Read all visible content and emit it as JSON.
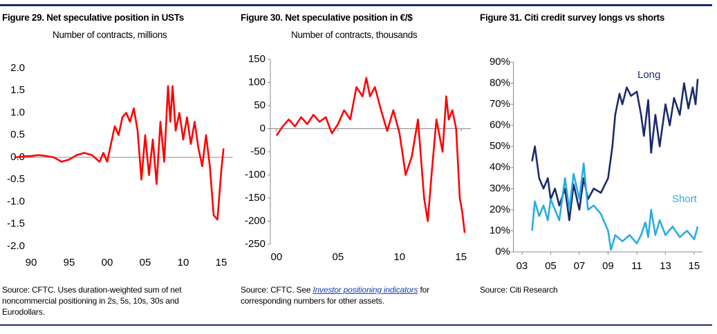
{
  "chart_data": [
    {
      "type": "line",
      "title": "Figure 29. Net speculative position in USTs",
      "subtitle": "Number of contracts, millions",
      "source": "Source: CFTC. Uses duration-weighted sum of net noncommercial positioning in 2s, 5s, 10s, 30s and Eurodollars.",
      "color": "#ff0000",
      "x": [
        1988,
        1989,
        1990,
        1991,
        1992,
        1993,
        1994,
        1995,
        1996,
        1997,
        1998,
        1999,
        1999.5,
        2000,
        2000.5,
        2001,
        2001.5,
        2002,
        2002.5,
        2003,
        2003.5,
        2004,
        2004.5,
        2005,
        2005.5,
        2006,
        2006.5,
        2007,
        2007.5,
        2008,
        2008.3,
        2008.6,
        2009,
        2009.5,
        2010,
        2010.5,
        2011,
        2011.5,
        2012,
        2012.5,
        2013,
        2013.5,
        2014,
        2014.5,
        2015,
        2015.3
      ],
      "values": [
        0,
        0.02,
        0.03,
        0.05,
        0.03,
        0,
        -0.1,
        -0.05,
        0.05,
        0.1,
        0.05,
        -0.1,
        0.1,
        -0.1,
        0.3,
        0.7,
        0.5,
        0.9,
        1.0,
        0.8,
        1.1,
        0.6,
        -0.5,
        0.5,
        -0.4,
        0.4,
        -0.6,
        0.8,
        -0.1,
        1.6,
        0.8,
        1.6,
        0.6,
        1.0,
        0.4,
        0.9,
        0.3,
        0.8,
        0.2,
        -0.2,
        0.5,
        -0.2,
        -1.3,
        -1.4,
        -0.3,
        0.2
      ],
      "xlim": [
        1988,
        2016.5
      ],
      "xticks": [
        {
          "value": 1990,
          "label": "90"
        },
        {
          "value": 1995,
          "label": "95"
        },
        {
          "value": 2000,
          "label": "00"
        },
        {
          "value": 2005,
          "label": "05"
        },
        {
          "value": 2010,
          "label": "10"
        },
        {
          "value": 2015,
          "label": "15"
        }
      ],
      "ylim": [
        -2,
        2
      ],
      "yticks": [
        {
          "value": 2,
          "label": "2.0"
        },
        1.5,
        {
          "value": 1,
          "label": "1.0"
        },
        0.5,
        {
          "value": 0,
          "label": "0.0"
        },
        -0.5,
        {
          "value": -1,
          "label": "-1.0"
        },
        -1.5,
        {
          "value": -2,
          "label": "-2.0"
        }
      ]
    },
    {
      "type": "line",
      "title": "Figure 30. Net speculative position in €/$",
      "subtitle": "Number of contracts, thousands",
      "source": {
        "before": "Source: CFTC. See ",
        "link": "Investor positioning indicators",
        "after": " for corresponding numbers for other assets."
      },
      "color": "#ff0000",
      "x": [
        2000,
        2000.5,
        2001,
        2001.5,
        2002,
        2002.5,
        2003,
        2003.5,
        2004,
        2004.5,
        2005,
        2005.5,
        2006,
        2006.5,
        2007,
        2007.3,
        2007.6,
        2008,
        2008.5,
        2009,
        2009.5,
        2010,
        2010.5,
        2011,
        2011.5,
        2012,
        2012.3,
        2012.6,
        2013,
        2013.5,
        2013.8,
        2014,
        2014.3,
        2014.6,
        2014.9,
        2015.1,
        2015.3
      ],
      "values": [
        -15,
        5,
        20,
        5,
        25,
        10,
        30,
        15,
        25,
        -10,
        10,
        40,
        20,
        90,
        70,
        110,
        70,
        90,
        40,
        -5,
        40,
        -10,
        -100,
        -60,
        20,
        -150,
        -200,
        -100,
        20,
        -50,
        70,
        20,
        40,
        0,
        -150,
        -180,
        -225
      ],
      "xlim": [
        1999.5,
        2015.8
      ],
      "xticks": [
        {
          "value": 2000,
          "label": "00"
        },
        {
          "value": 2005,
          "label": "05"
        },
        {
          "value": 2010,
          "label": "10"
        },
        {
          "value": 2015,
          "label": "15"
        }
      ],
      "ylim": [
        -250,
        150
      ],
      "yticks": [
        150,
        100,
        50,
        0,
        -50,
        -100,
        -150,
        -200,
        -250
      ]
    },
    {
      "type": "line",
      "title": "Figure 31. Citi credit survey longs vs shorts",
      "source": "Source: Citi Research",
      "series": [
        {
          "name": "Long",
          "color": "#1a2a6c",
          "x": [
            2003.7,
            2003.9,
            2004.2,
            2004.5,
            2004.8,
            2005,
            2005.3,
            2005.6,
            2006,
            2006.3,
            2006.6,
            2007,
            2007.3,
            2007.6,
            2008,
            2008.5,
            2009,
            2009.3,
            2009.5,
            2009.8,
            2010,
            2010.3,
            2010.6,
            2011,
            2011.3,
            2011.5,
            2011.8,
            2012,
            2012.3,
            2012.6,
            2013,
            2013.3,
            2013.6,
            2014,
            2014.3,
            2014.6,
            2014.9,
            2015.1,
            2015.25
          ],
          "values": [
            43,
            50,
            35,
            30,
            35,
            25,
            30,
            22,
            30,
            15,
            32,
            20,
            35,
            25,
            30,
            28,
            35,
            50,
            65,
            75,
            70,
            78,
            74,
            76,
            65,
            55,
            72,
            47,
            65,
            50,
            70,
            60,
            73,
            65,
            80,
            68,
            78,
            70,
            82
          ]
        },
        {
          "name": "Short",
          "color": "#29abe2",
          "x": [
            2003.7,
            2003.9,
            2004.2,
            2004.5,
            2004.8,
            2005,
            2005.3,
            2005.6,
            2006,
            2006.3,
            2006.6,
            2007,
            2007.3,
            2007.6,
            2008,
            2008.5,
            2009,
            2009.2,
            2009.5,
            2010,
            2010.5,
            2011,
            2011.3,
            2011.6,
            2011.8,
            2012,
            2012.3,
            2012.6,
            2013,
            2013.5,
            2014,
            2014.5,
            2015,
            2015.25
          ],
          "values": [
            10,
            24,
            17,
            22,
            15,
            25,
            20,
            15,
            35,
            20,
            37,
            25,
            42,
            20,
            22,
            18,
            10,
            1,
            8,
            5,
            8,
            4,
            8,
            14,
            7,
            20,
            8,
            15,
            8,
            12,
            7,
            10,
            6,
            12
          ]
        }
      ],
      "xlim": [
        2002.4,
        2015.6
      ],
      "xticks": [
        {
          "value": 2003,
          "label": "03"
        },
        {
          "value": 2005,
          "label": "05"
        },
        {
          "value": 2007,
          "label": "07"
        },
        {
          "value": 2009,
          "label": "09"
        },
        {
          "value": 2011,
          "label": "11"
        },
        {
          "value": 2013,
          "label": "13"
        },
        {
          "value": 2015,
          "label": "15"
        }
      ],
      "ylim": [
        0,
        90
      ],
      "yticks": [
        {
          "value": 90,
          "label": "90%"
        },
        {
          "value": 80,
          "label": "80%"
        },
        {
          "value": 70,
          "label": "70%"
        },
        {
          "value": 60,
          "label": "60%"
        },
        {
          "value": 50,
          "label": "50%"
        },
        {
          "value": 40,
          "label": "40%"
        },
        {
          "value": 30,
          "label": "30%"
        },
        {
          "value": 20,
          "label": "20%"
        },
        {
          "value": 10,
          "label": "10%"
        },
        {
          "value": 0,
          "label": "0%"
        }
      ]
    }
  ]
}
